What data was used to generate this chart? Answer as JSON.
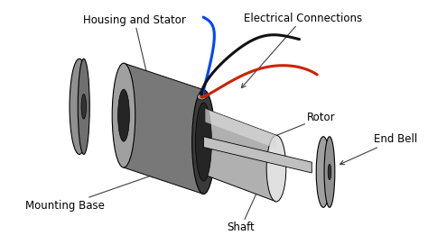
{
  "background_color": "#ffffff",
  "labels": {
    "housing_stator": "Housing and Stator",
    "electrical_connections": "Electrical Connections",
    "rotor": "Rotor",
    "end_bell": "End Bell",
    "mounting_base": "Mounting Base",
    "shaft": "Shaft"
  },
  "colors": {
    "stator_top": "#909090",
    "stator_body": "#787878",
    "stator_right_face": "#3a3a3a",
    "stator_left_face": "#a0a0a0",
    "stator_inner": "#252525",
    "back_disk": "#909090",
    "back_disk_rim": "#707070",
    "back_disk_hole": "#333333",
    "rotor_body": "#b0b0b0",
    "rotor_top": "#d0d0d0",
    "rotor_right_face": "#e0e0e0",
    "rotor_left_face": "#888888",
    "front_disk": "#909090",
    "front_disk_hole": "#333333",
    "shaft_color": "#c0c0c0",
    "shaft_dark": "#888888",
    "mounting_base": "#707070",
    "wire_blue": "#0044ff",
    "wire_black": "#111111",
    "wire_red": "#cc2200",
    "wire_connector": "#888888"
  },
  "font_size": 8.5
}
